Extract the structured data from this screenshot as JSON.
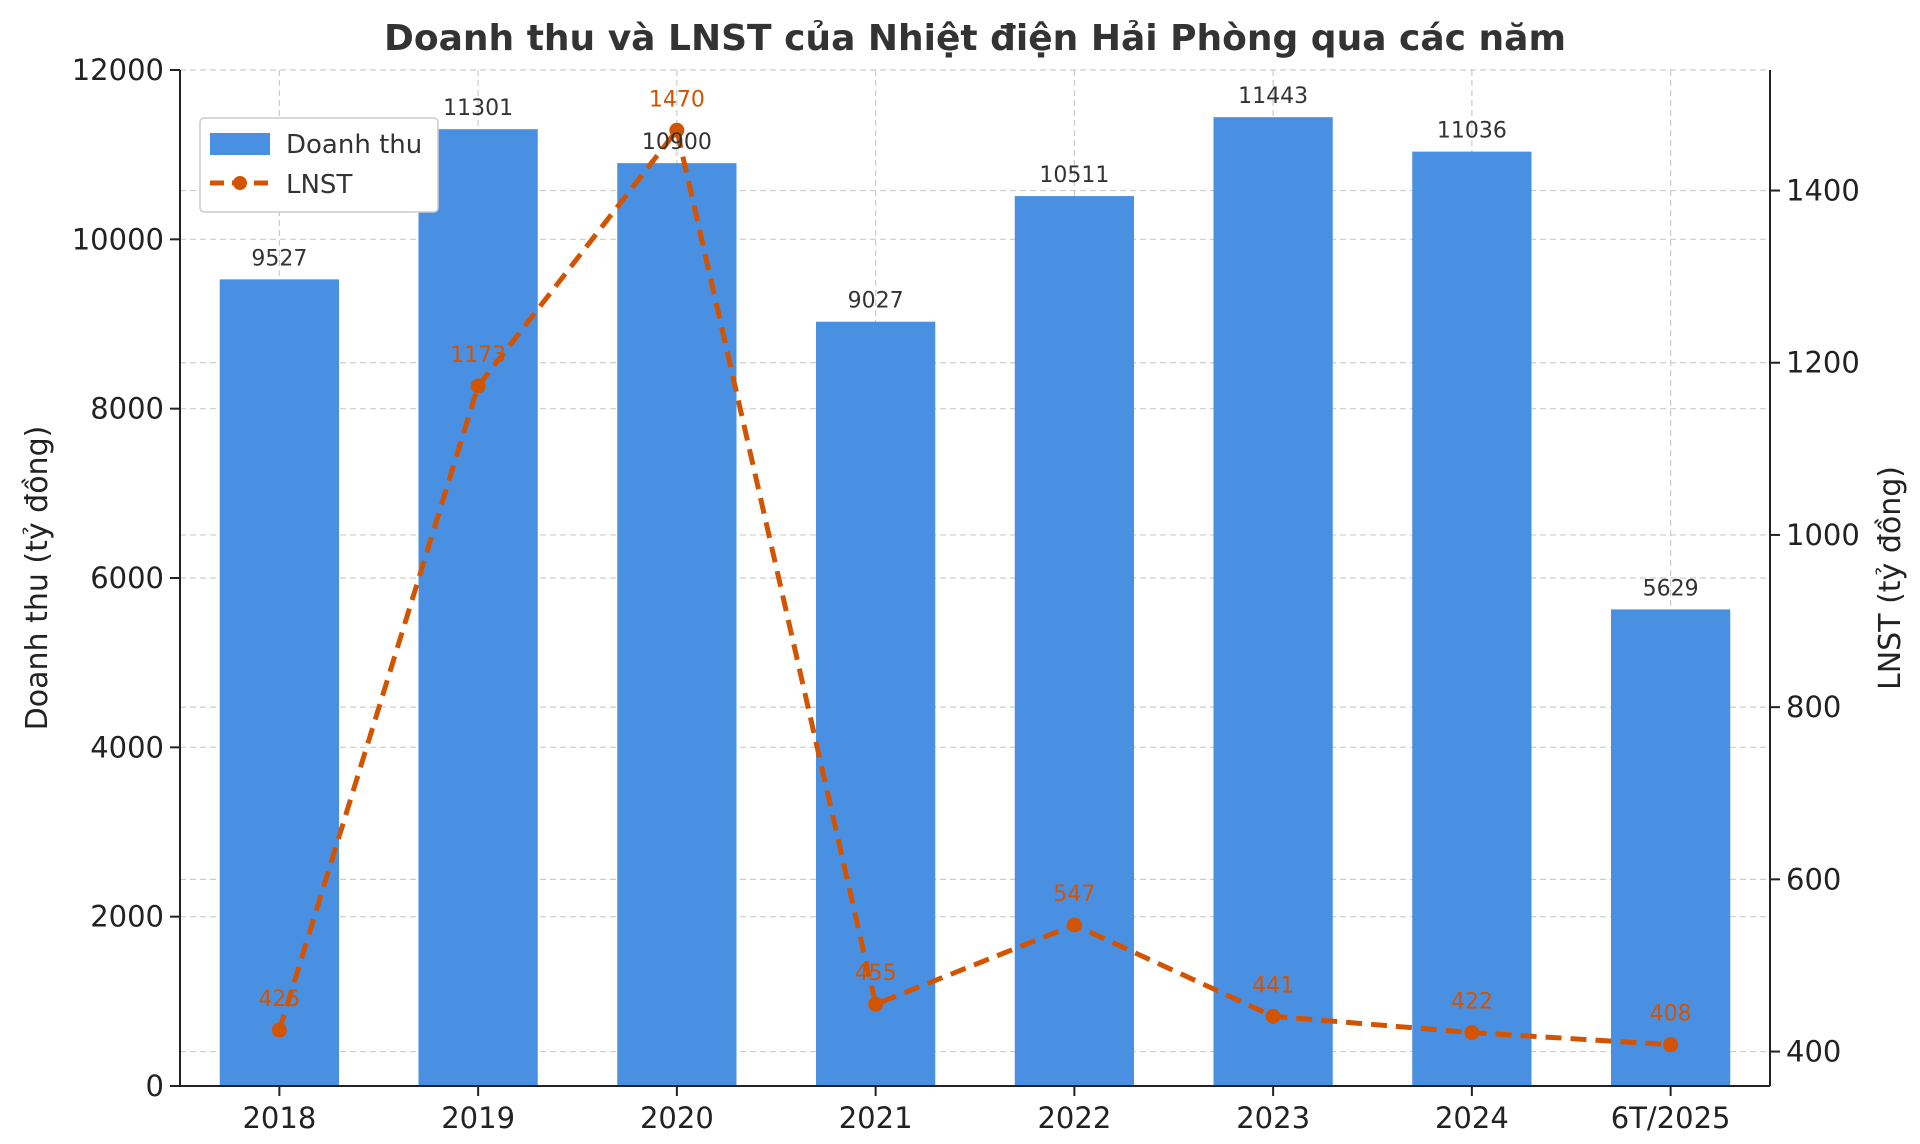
{
  "chart_data": {
    "type": "bar",
    "title": "Doanh thu và LNST của Nhiệt điện Hải Phòng qua các năm",
    "categories": [
      "2018",
      "2019",
      "2020",
      "2021",
      "2022",
      "2023",
      "2024",
      "6T/2025"
    ],
    "series": [
      {
        "name": "Doanh thu",
        "type": "bar",
        "axis": "left",
        "color": "#4a90e2",
        "values": [
          9527,
          11301,
          10900,
          9027,
          10511,
          11443,
          11036,
          5629
        ]
      },
      {
        "name": "LNST",
        "type": "line",
        "axis": "right",
        "style": "dashed",
        "marker": "circle",
        "color": "#d35400",
        "values": [
          425,
          1173,
          1470,
          455,
          547,
          441,
          422,
          408
        ]
      }
    ],
    "ylabel": "Doanh thu (tỷ đồng)",
    "ylabel_right": "LNST (tỷ đồng)",
    "ylim": [
      0,
      12000
    ],
    "ylim_right": [
      360,
      1540
    ],
    "yticks": [
      "0",
      "2000",
      "4000",
      "6000",
      "8000",
      "10000",
      "12000"
    ],
    "yticks_right": [
      "400",
      "600",
      "800",
      "1000",
      "1200",
      "1400"
    ],
    "grid": true,
    "legend": "top-left"
  }
}
